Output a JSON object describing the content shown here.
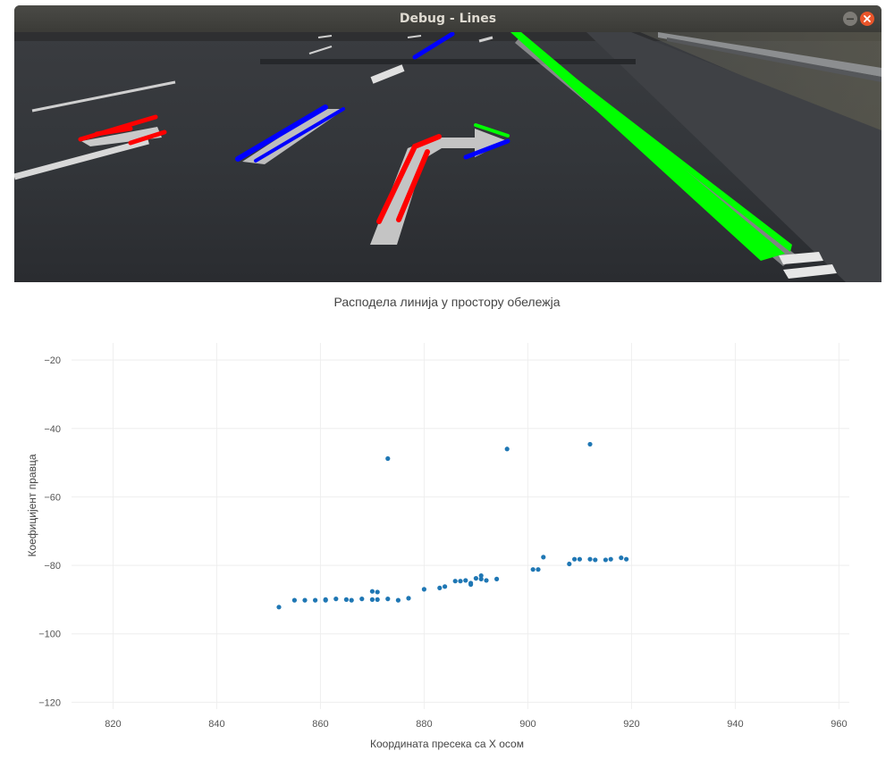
{
  "window": {
    "title": "Debug - Lines",
    "buttons": [
      "minimize",
      "close"
    ]
  },
  "road_view": {
    "description_icon": "road-camera-frame",
    "line_colors": {
      "left": "#ff0000",
      "middle": "#0000ff",
      "right": "#00ff00"
    }
  },
  "chart_data": {
    "type": "scatter",
    "title": "Расподела линија у простору обележја",
    "xlabel": "Координата пресека са X осом",
    "ylabel": "Коефицијент правца",
    "xlim": [
      812,
      962
    ],
    "ylim": [
      -122,
      -15
    ],
    "xticks": [
      820,
      840,
      860,
      880,
      900,
      920,
      940,
      960
    ],
    "yticks": [
      -20,
      -40,
      -60,
      -80,
      -100,
      -120
    ],
    "grid": true,
    "marker_color": "#1f77b4",
    "points": [
      [
        852,
        -92.2
      ],
      [
        855,
        -90.2
      ],
      [
        857,
        -90.2
      ],
      [
        859,
        -90.2
      ],
      [
        861,
        -90.0
      ],
      [
        861,
        -90.2
      ],
      [
        863,
        -89.8
      ],
      [
        865,
        -90.0
      ],
      [
        866,
        -90.2
      ],
      [
        868,
        -89.8
      ],
      [
        870,
        -90.0
      ],
      [
        870,
        -87.6
      ],
      [
        871,
        -90.0
      ],
      [
        871,
        -87.8
      ],
      [
        873,
        -89.8
      ],
      [
        875,
        -90.2
      ],
      [
        877,
        -89.6
      ],
      [
        880,
        -87.0
      ],
      [
        883,
        -86.6
      ],
      [
        884,
        -86.2
      ],
      [
        886,
        -84.6
      ],
      [
        887,
        -84.6
      ],
      [
        888,
        -84.4
      ],
      [
        889,
        -85.6
      ],
      [
        889,
        -85.2
      ],
      [
        890,
        -83.8
      ],
      [
        891,
        -83.0
      ],
      [
        891,
        -84.0
      ],
      [
        892,
        -84.4
      ],
      [
        894,
        -84.0
      ],
      [
        901,
        -81.2
      ],
      [
        902,
        -81.2
      ],
      [
        903,
        -77.6
      ],
      [
        908,
        -79.6
      ],
      [
        909,
        -78.2
      ],
      [
        910,
        -78.2
      ],
      [
        912,
        -78.2
      ],
      [
        913,
        -78.4
      ],
      [
        915,
        -78.4
      ],
      [
        916,
        -78.2
      ],
      [
        918,
        -77.8
      ],
      [
        919,
        -78.2
      ],
      [
        873,
        -48.8
      ],
      [
        896,
        -46.0
      ],
      [
        912,
        -44.6
      ]
    ]
  }
}
